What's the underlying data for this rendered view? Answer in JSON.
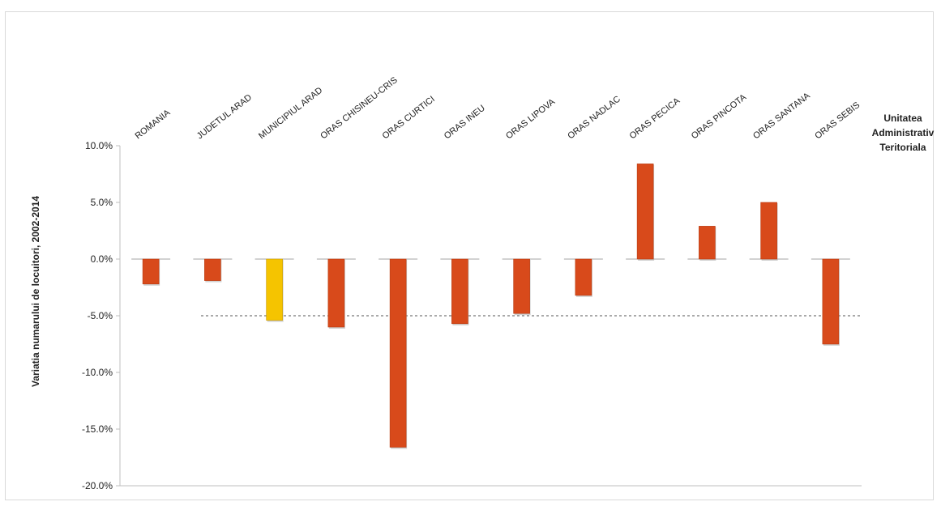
{
  "chart_data": {
    "type": "bar",
    "title": "",
    "xlabel": "Unitatea Administrativ Teritoriala",
    "xlabel_lines": [
      "Unitatea",
      "Administrativ",
      "Teritoriala"
    ],
    "ylabel": "Variatia numarului de locuitori, 2002-2014",
    "ylim": [
      -20.0,
      10.0
    ],
    "yticks": [
      10.0,
      5.0,
      0.0,
      -5.0,
      -10.0,
      -15.0,
      -20.0
    ],
    "ytick_labels": [
      "10.0%",
      "5.0%",
      "0.0%",
      "-5.0%",
      "-10.0%",
      "-15.0%",
      "-20.0%"
    ],
    "categories": [
      "ROMANIA",
      "JUDETUL ARAD",
      "MUNICIPIUL ARAD",
      "ORAS CHISINEU-CRIS",
      "ORAS CURTICI",
      "ORAS INEU",
      "ORAS LIPOVA",
      "ORAS NADLAC",
      "ORAS PECICA",
      "ORAS PINCOTA",
      "ORAS SANTANA",
      "ORAS SEBIS"
    ],
    "values": [
      -2.2,
      -1.9,
      -5.4,
      -6.0,
      -16.6,
      -5.7,
      -4.8,
      -3.2,
      8.4,
      2.9,
      5.0,
      -7.5
    ],
    "bar_colors": [
      "#d84a1b",
      "#d84a1b",
      "#f5c400",
      "#d84a1b",
      "#d84a1b",
      "#d84a1b",
      "#d84a1b",
      "#d84a1b",
      "#d84a1b",
      "#d84a1b",
      "#d84a1b",
      "#d84a1b"
    ],
    "reference_line": -5.0,
    "grid": false,
    "legend": "none"
  }
}
